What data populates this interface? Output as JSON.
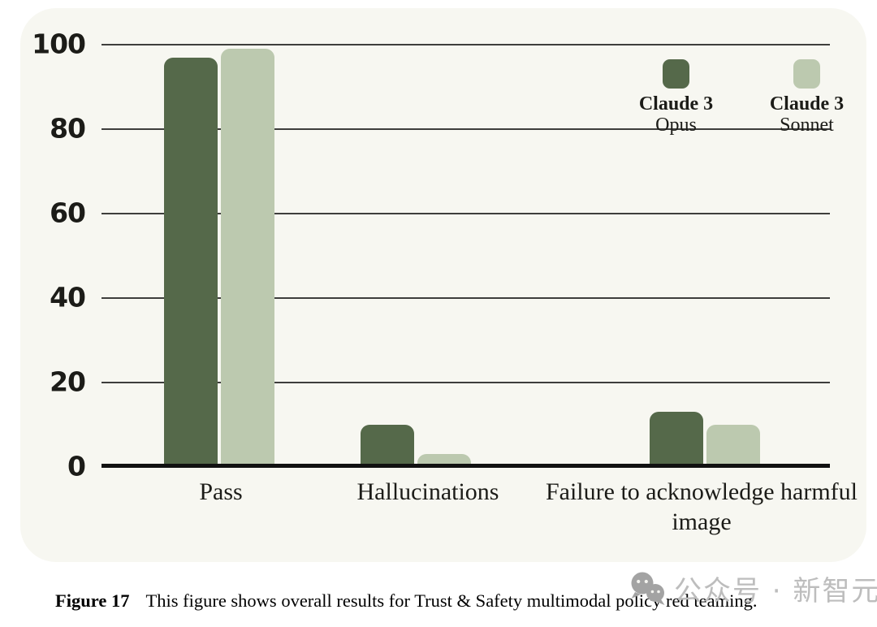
{
  "figure": {
    "caption_label": "Figure 17",
    "caption_text": "This figure shows overall results for Trust & Safety multimodal policy red teaming."
  },
  "watermark": {
    "icon": "wechat-icon",
    "text": "公众号 · 新智元",
    "color": "#BDBDBD"
  },
  "legend": {
    "items": [
      {
        "line1": "Claude 3",
        "line2": "Opus",
        "swatch_color": "#55694A"
      },
      {
        "line1": "Claude 3",
        "line2": "Sonnet",
        "swatch_color": "#BCC9AF"
      }
    ]
  },
  "colors": {
    "opus_bar": "#55694A",
    "sonnet_bar": "#BCC9AF",
    "card_background": "#F7F7F1",
    "page_background": "#FFFFFF",
    "gridline": "#3E3E3C",
    "axis": "#111111",
    "text": "#1C1C18",
    "watermark_gray": "#BDBDBD"
  },
  "chart_data": {
    "type": "bar",
    "categories": [
      "Pass",
      "Hallucinations",
      "Failure to acknowledge harmful image"
    ],
    "series": [
      {
        "name": "Claude 3 Opus",
        "color": "#55694A",
        "values": [
          97,
          10,
          13
        ]
      },
      {
        "name": "Claude 3 Sonnet",
        "color": "#BCC9AF",
        "values": [
          99,
          3,
          10
        ]
      }
    ],
    "title": "",
    "xlabel": "",
    "ylabel": "",
    "ylim": [
      0,
      100
    ],
    "yticks": [
      0,
      20,
      40,
      60,
      80,
      100
    ],
    "grid": true,
    "legend_position": "top-right"
  }
}
